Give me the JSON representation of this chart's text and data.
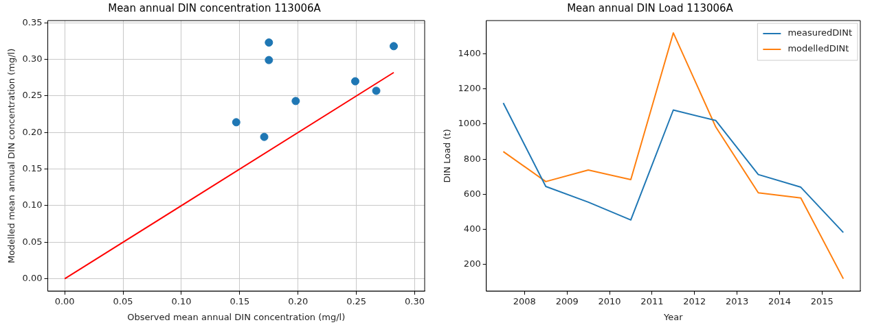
{
  "chart_data": [
    {
      "type": "scatter",
      "title": "Mean annual DIN concentration 113006A",
      "xlabel": "Observed mean annual DIN concentration (mg/l)",
      "ylabel": "Modelled mean annual DIN concentration (mg/l)",
      "x": [
        0.147,
        0.171,
        0.175,
        0.175,
        0.198,
        0.249,
        0.267,
        0.282
      ],
      "series": [
        {
          "color": "#1f77b4",
          "marker": "circle",
          "values": [
            0.214,
            0.194,
            0.299,
            0.323,
            0.243,
            0.27,
            0.257,
            0.318
          ]
        },
        {
          "type": "line",
          "color": "#ff0000",
          "marker": "none",
          "x": [
            0,
            0.282
          ],
          "values": [
            0,
            0.282
          ]
        }
      ],
      "xlim": [
        -0.0145,
        0.3085
      ],
      "ylim": [
        -0.017,
        0.353
      ],
      "xticks": [
        {
          "value": 0,
          "label": "0.00"
        },
        {
          "value": 0.05,
          "label": "0.05"
        },
        {
          "value": 0.1,
          "label": "0.10"
        },
        {
          "value": 0.15,
          "label": "0.15"
        },
        {
          "value": 0.2,
          "label": "0.20"
        },
        {
          "value": 0.25,
          "label": "0.25"
        },
        {
          "value": 0.3,
          "label": "0.30"
        }
      ],
      "yticks": [
        {
          "value": 0,
          "label": "0.00"
        },
        {
          "value": 0.05,
          "label": "0.05"
        },
        {
          "value": 0.1,
          "label": "0.10"
        },
        {
          "value": 0.15,
          "label": "0.15"
        },
        {
          "value": 0.2,
          "label": "0.20"
        },
        {
          "value": 0.25,
          "label": "0.25"
        },
        {
          "value": 0.3,
          "label": "0.30"
        },
        {
          "value": 0.35,
          "label": "0.35"
        }
      ],
      "grid": true
    },
    {
      "type": "line",
      "title": "Mean annual DIN Load 113006A",
      "xlabel": "Year",
      "ylabel": "DIN Load (t)",
      "x": [
        2007.5,
        2008.5,
        2009.5,
        2010.5,
        2011.5,
        2012.5,
        2013.5,
        2014.5,
        2015.5
      ],
      "series": [
        {
          "name": "measuredDINt",
          "color": "#1f77b4",
          "values": [
            1120,
            644,
            555,
            453,
            1080,
            1020,
            712,
            640,
            382
          ]
        },
        {
          "name": "modelledDINt",
          "color": "#ff7f0e",
          "values": [
            843,
            672,
            738,
            683,
            1520,
            983,
            608,
            579,
            118
          ]
        }
      ],
      "xlim": [
        2007.1,
        2015.9
      ],
      "ylim": [
        47,
        1590
      ],
      "xticks": [
        2008,
        2009,
        2010,
        2011,
        2012,
        2013,
        2014,
        2015
      ],
      "yticks": [
        200,
        400,
        600,
        800,
        1000,
        1200,
        1400
      ],
      "legend": "top right",
      "marker": "none"
    }
  ]
}
